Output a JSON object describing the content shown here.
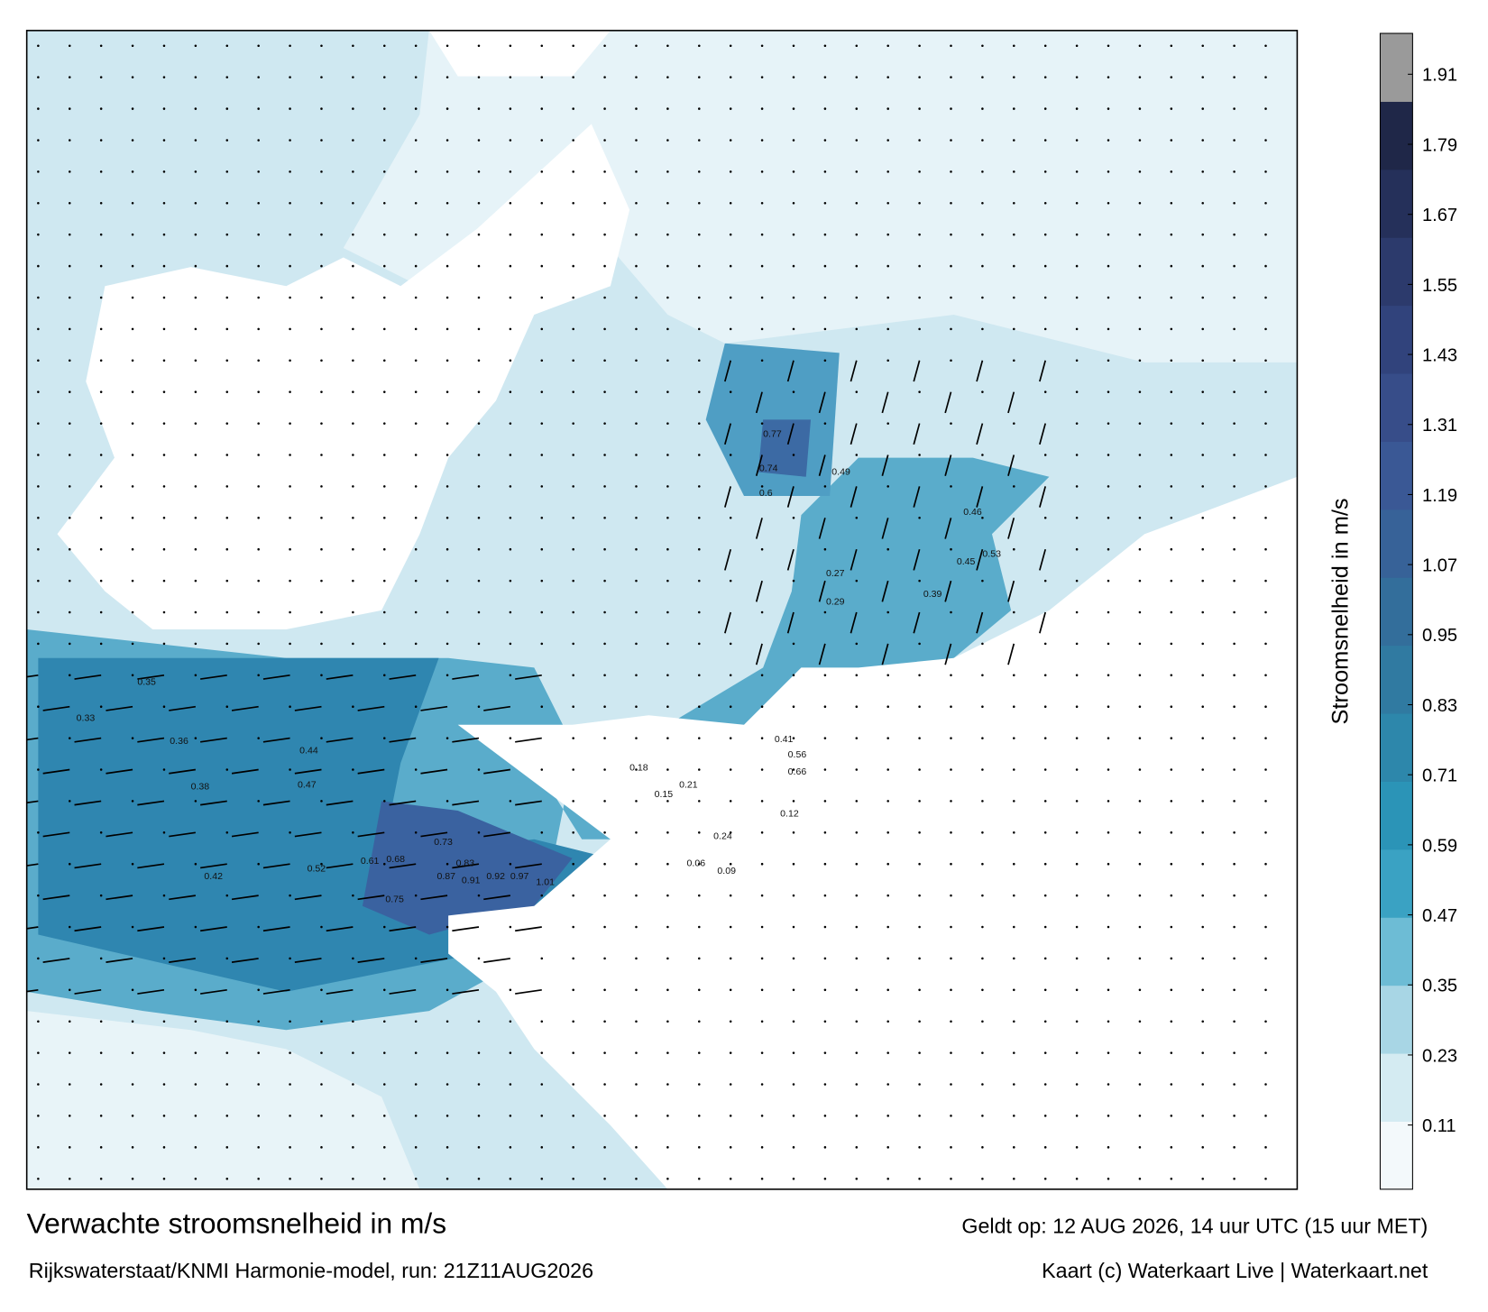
{
  "title": "Verwachte stroomsnelheid in m/s",
  "subtitle": "Rijkswaterstaat/KNMI Harmonie-model, run: 21Z11AUG2026",
  "valid": "Geldt op: 12 AUG 2026, 14 uur UTC (15 uur MET)",
  "credit": "Kaart (c) Waterkaart Live | Waterkaart.net",
  "colorbar": {
    "label": "Stroomsnelheid in m/s",
    "range": [
      0,
      1.98
    ],
    "ticks": [
      0.11,
      0.23,
      0.35,
      0.47,
      0.59,
      0.71,
      0.83,
      0.95,
      1.07,
      1.19,
      1.31,
      1.43,
      1.55,
      1.67,
      1.79,
      1.91
    ],
    "colors": [
      "#f3f9fb",
      "#d4ebf2",
      "#a8d6e5",
      "#6dbcd5",
      "#3aa2c3",
      "#2b94b7",
      "#2d87ab",
      "#307aa1",
      "#336e9b",
      "#376298",
      "#3a5895",
      "#374d89",
      "#31437c",
      "#2c3a6c",
      "#25305a",
      "#1f2748",
      "#9a9a9a"
    ]
  },
  "map": {
    "speed_labels": [
      0.97,
      0.92,
      1.01,
      0.83,
      0.73,
      0.87,
      0.91,
      0.75,
      0.61,
      0.68,
      0.52,
      0.47,
      0.44,
      0.42,
      0.38,
      0.36,
      0.33,
      0.35,
      0.77,
      0.74,
      0.6,
      0.49,
      0.46,
      0.53,
      0.45,
      0.39,
      0.56,
      0.66,
      0.41,
      0.29,
      0.27,
      0.24,
      0.21,
      0.18,
      0.15,
      0.12,
      0.09,
      0.06
    ]
  }
}
